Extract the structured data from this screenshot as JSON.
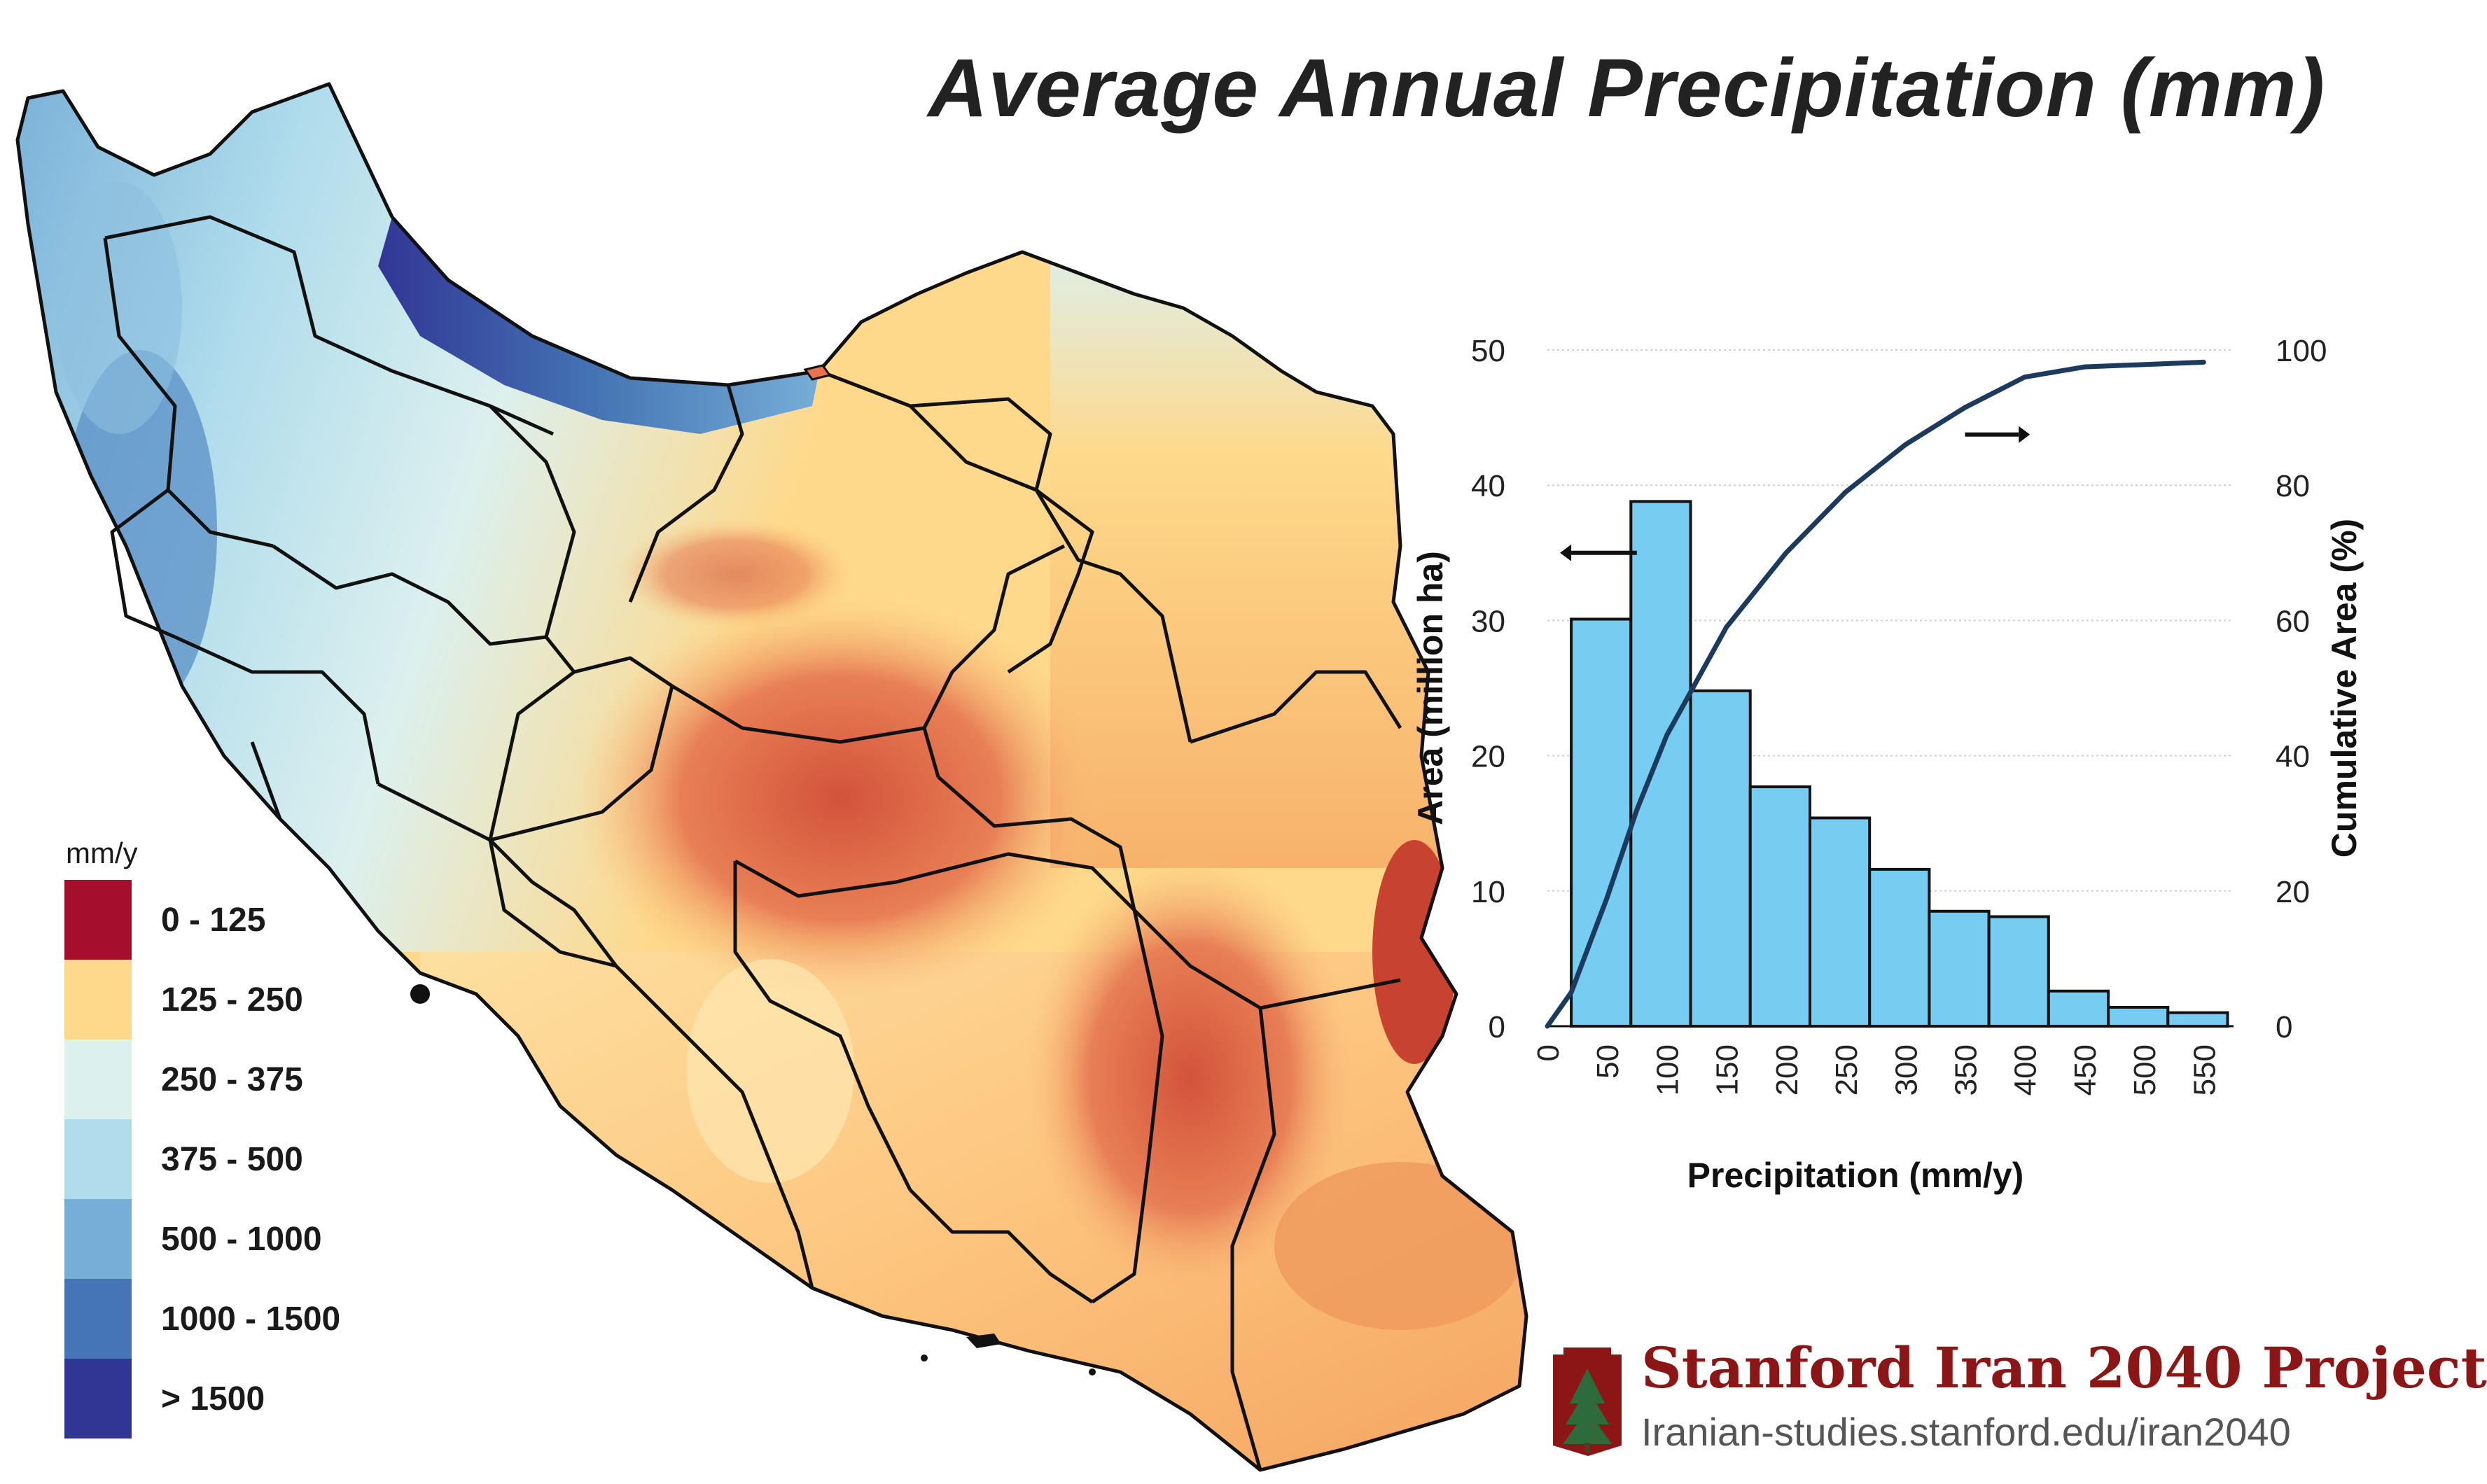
{
  "title": "Average Annual Precipitation (mm)",
  "legend": {
    "unit": "mm/y",
    "items": [
      {
        "label": "0 - 125",
        "color": "#a50f2d"
      },
      {
        "label": "125 - 250",
        "color": "#fed98b"
      },
      {
        "label": "250 - 375",
        "color": "#dcf0ee"
      },
      {
        "label": "375 - 500",
        "color": "#b0dcec"
      },
      {
        "label": "500 - 1000",
        "color": "#76aed7"
      },
      {
        "label": "1000 - 1500",
        "color": "#4575b4"
      },
      {
        "label": "> 1500",
        "color": "#313695"
      }
    ]
  },
  "chart_data": {
    "type": "bar",
    "xlabel": "Precipitation (mm/y)",
    "ylabel": "Area (million ha)",
    "y2label": "Cumulative Area (%)",
    "ylim": [
      0,
      50
    ],
    "y2lim": [
      0,
      100
    ],
    "yticks": [
      0,
      10,
      20,
      30,
      40,
      50
    ],
    "y2ticks": [
      0,
      20,
      40,
      60,
      80,
      100
    ],
    "xticks": [
      0,
      50,
      100,
      150,
      200,
      250,
      300,
      350,
      400,
      450,
      500,
      550
    ],
    "grid": true,
    "bar_color": "#77ccf2",
    "line_color": "#1c3a5e",
    "series": [
      {
        "type": "bar",
        "axis": "left",
        "bins": [
          [
            20,
            70
          ],
          [
            70,
            120
          ],
          [
            120,
            170
          ],
          [
            170,
            220
          ],
          [
            220,
            270
          ],
          [
            270,
            320
          ],
          [
            320,
            370
          ],
          [
            370,
            420
          ],
          [
            420,
            470
          ],
          [
            470,
            520
          ],
          [
            520,
            570
          ]
        ],
        "values": [
          30.1,
          38.8,
          24.8,
          17.7,
          15.4,
          11.6,
          8.5,
          8.1,
          2.6,
          1.4,
          1.0
        ]
      },
      {
        "type": "line",
        "axis": "right",
        "x": [
          0,
          20,
          50,
          75,
          100,
          150,
          200,
          250,
          300,
          350,
          400,
          450,
          550
        ],
        "values": [
          0,
          5,
          19,
          32,
          43,
          59,
          70,
          79,
          86,
          91.5,
          96,
          97.5,
          98.2
        ]
      }
    ]
  },
  "brand": {
    "name": "Stanford Iran 2040 Project",
    "url": "Iranian-studies.stanford.edu/iran2040"
  }
}
